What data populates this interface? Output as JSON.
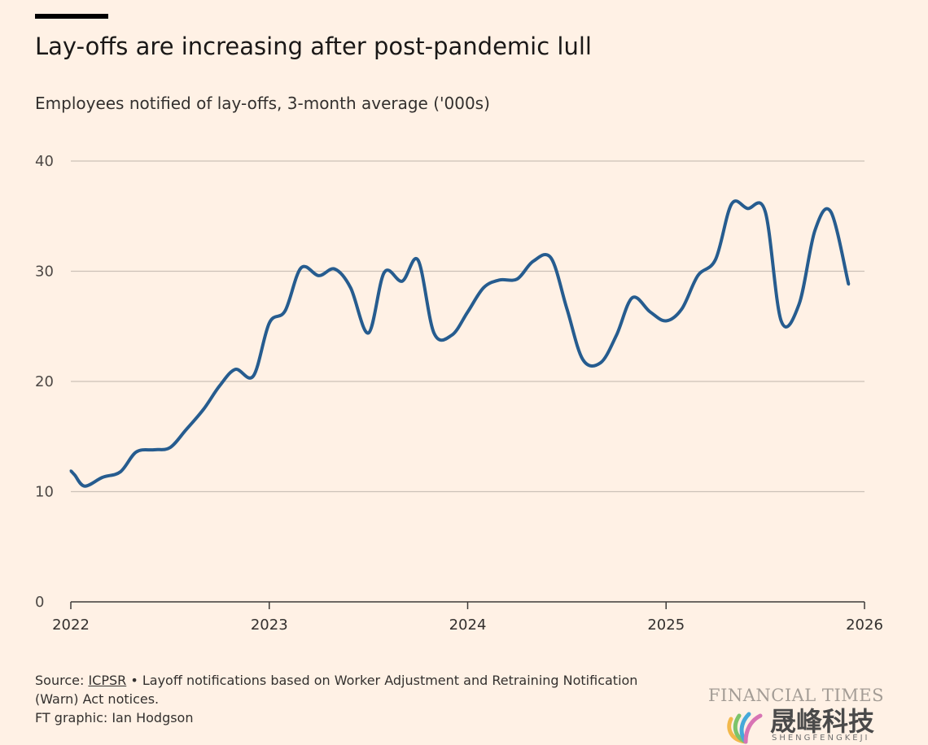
{
  "header": {
    "title": "Lay-offs are increasing after post-pandemic lull",
    "subtitle": "Employees notified of lay-offs, 3-month average ('000s)"
  },
  "chart_data": {
    "type": "line",
    "title": "Lay-offs are increasing after post-pandemic lull",
    "subtitle": "Employees notified of lay-offs, 3-month average ('000s)",
    "xlabel": "",
    "ylabel": "",
    "xlim": [
      2022,
      2026
    ],
    "ylim": [
      0,
      40
    ],
    "x_ticks": [
      2022,
      2023,
      2024,
      2025,
      2026
    ],
    "x_tick_labels": [
      "2022",
      "2023",
      "2024",
      "2025",
      "2026"
    ],
    "y_ticks": [
      0,
      10,
      20,
      30,
      40
    ],
    "y_tick_labels": [
      "0",
      "10",
      "20",
      "30",
      "40"
    ],
    "grid": true,
    "line_color": "#265c8f",
    "series": [
      {
        "name": "Employees notified of lay-offs, 3-month average ('000s)",
        "x": [
          2022.0,
          2022.02,
          2022.07,
          2022.16,
          2022.25,
          2022.33,
          2022.42,
          2022.5,
          2022.58,
          2022.67,
          2022.75,
          2022.83,
          2022.92,
          2023.0,
          2023.08,
          2023.16,
          2023.25,
          2023.33,
          2023.41,
          2023.5,
          2023.58,
          2023.67,
          2023.75,
          2023.83,
          2023.92,
          2024.0,
          2024.08,
          2024.16,
          2024.25,
          2024.33,
          2024.42,
          2024.5,
          2024.58,
          2024.67,
          2024.75,
          2024.83,
          2024.92,
          2025.0,
          2025.08,
          2025.16,
          2025.25,
          2025.33,
          2025.41,
          2025.5,
          2025.58,
          2025.67,
          2025.75,
          2025.83,
          2025.92
        ],
        "values": [
          11.9,
          11.5,
          10.5,
          11.3,
          11.8,
          13.6,
          13.8,
          14.0,
          15.6,
          17.5,
          19.6,
          21.1,
          20.5,
          25.3,
          26.4,
          30.3,
          29.6,
          30.2,
          28.5,
          24.4,
          29.9,
          29.1,
          31.0,
          24.4,
          24.2,
          26.3,
          28.5,
          29.2,
          29.3,
          30.9,
          31.2,
          26.6,
          22.0,
          21.7,
          24.2,
          27.6,
          26.3,
          25.5,
          26.6,
          29.6,
          31.1,
          36.1,
          35.7,
          35.4,
          25.5,
          27.0,
          33.7,
          35.4,
          28.8
        ]
      }
    ]
  },
  "footer": {
    "source_prefix": "Source: ",
    "source_link": "ICPSR",
    "source_rest": " • Layoff notifications based on Worker Adjustment and Retraining Notification",
    "source_line2": "(Warn) Act notices.",
    "credit": "FT graphic: Ian Hodgson"
  },
  "branding": {
    "publisher": "FINANCIAL TIMES",
    "watermark_cn": "晟峰科技",
    "watermark_en": "SHENGFENGKEJI"
  }
}
